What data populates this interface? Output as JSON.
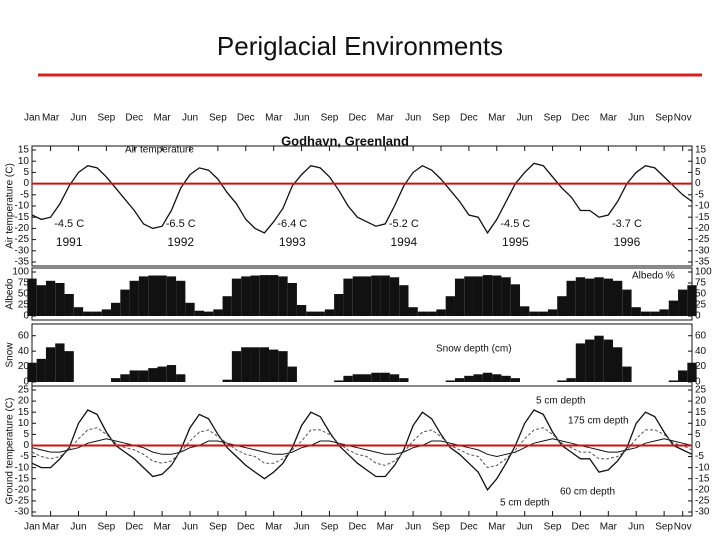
{
  "title": "Periglacial Environments",
  "chart_data": [
    {
      "type": "line",
      "title": "Godhavn, Greenland",
      "ylabel": "Air temperature (C)",
      "annotation": "Air temperature",
      "mean_labels": [
        "-4.5 C",
        "-6.5 C",
        "-6.4 C",
        "-5.2 C",
        "-4.5 C",
        "-3.7 C"
      ],
      "year_labels": [
        "1991",
        "1992",
        "1993",
        "1994",
        "1995",
        "1996"
      ],
      "x": [
        0,
        1,
        2,
        3,
        4,
        5,
        6,
        7,
        8,
        9,
        10,
        11,
        12,
        13,
        14,
        15,
        16,
        17,
        18,
        19,
        20,
        21,
        22,
        23,
        24,
        25,
        26,
        27,
        28,
        29,
        30,
        31,
        32,
        33,
        34,
        35,
        36,
        37,
        38,
        39,
        40,
        41,
        42,
        43,
        44,
        45,
        46,
        47,
        48,
        49,
        50,
        51,
        52,
        53,
        54,
        55,
        56,
        57,
        58,
        59,
        60,
        61,
        62,
        63,
        64,
        65,
        66,
        67,
        68,
        69,
        70,
        71
      ],
      "xlim": [
        0,
        71
      ],
      "xticks": [
        {
          "value": 0,
          "label": "Jan"
        },
        {
          "value": 2,
          "label": "Mar"
        },
        {
          "value": 5,
          "label": "Jun"
        },
        {
          "value": 8,
          "label": "Sep"
        },
        {
          "value": 11,
          "label": "Dec"
        },
        {
          "value": 14,
          "label": "Mar"
        },
        {
          "value": 17,
          "label": "Jun"
        },
        {
          "value": 20,
          "label": "Sep"
        },
        {
          "value": 23,
          "label": "Dec"
        },
        {
          "value": 26,
          "label": "Mar"
        },
        {
          "value": 29,
          "label": "Jun"
        },
        {
          "value": 32,
          "label": "Sep"
        },
        {
          "value": 35,
          "label": "Dec"
        },
        {
          "value": 38,
          "label": "Mar"
        },
        {
          "value": 41,
          "label": "Jun"
        },
        {
          "value": 44,
          "label": "Sep"
        },
        {
          "value": 47,
          "label": "Dec"
        },
        {
          "value": 50,
          "label": "Mar"
        },
        {
          "value": 53,
          "label": "Jun"
        },
        {
          "value": 56,
          "label": "Sep"
        },
        {
          "value": 59,
          "label": "Dec"
        },
        {
          "value": 62,
          "label": "Mar"
        },
        {
          "value": 65,
          "label": "Jun"
        },
        {
          "value": 68,
          "label": "Sep"
        },
        {
          "value": 70,
          "label": "Nov"
        }
      ],
      "ylim": [
        -35,
        15
      ],
      "yticks": [
        15,
        10,
        5,
        0,
        -5,
        -10,
        -15,
        -20,
        -25,
        -30,
        -35
      ],
      "zero_line_color": "#cc1111",
      "series": [
        {
          "color": "#111111",
          "values": [
            -14,
            -16,
            -15,
            -9,
            -1,
            5,
            8,
            7,
            3,
            -2,
            -7,
            -12,
            -18,
            -20,
            -19,
            -12,
            -2,
            4,
            7,
            6,
            2,
            -4,
            -9,
            -16,
            -20,
            -22,
            -17,
            -11,
            -1,
            4,
            8,
            7,
            3,
            -3,
            -10,
            -15,
            -17,
            -19,
            -18,
            -10,
            -1,
            5,
            8,
            6,
            2,
            -3,
            -8,
            -14,
            -15,
            -22,
            -16,
            -8,
            0,
            5,
            9,
            8,
            3,
            -2,
            -6,
            -12,
            -12,
            -15,
            -14,
            -8,
            0,
            5,
            8,
            7,
            3,
            -1,
            -5,
            -8
          ]
        }
      ]
    },
    {
      "type": "bar",
      "ylabel": "Albedo",
      "annotation": "Albedo %",
      "x": [
        0,
        1,
        2,
        3,
        4,
        5,
        6,
        7,
        8,
        9,
        10,
        11,
        12,
        13,
        14,
        15,
        16,
        17,
        18,
        19,
        20,
        21,
        22,
        23,
        24,
        25,
        26,
        27,
        28,
        29,
        30,
        31,
        32,
        33,
        34,
        35,
        36,
        37,
        38,
        39,
        40,
        41,
        42,
        43,
        44,
        45,
        46,
        47,
        48,
        49,
        50,
        51,
        52,
        53,
        54,
        55,
        56,
        57,
        58,
        59,
        60,
        61,
        62,
        63,
        64,
        65,
        66,
        67,
        68,
        69,
        70,
        71
      ],
      "xlim": [
        0,
        71
      ],
      "ylim": [
        0,
        100
      ],
      "yticks": [
        100,
        75,
        50,
        25,
        0
      ],
      "color": "#111111",
      "values": [
        85,
        70,
        80,
        75,
        50,
        20,
        10,
        10,
        15,
        30,
        60,
        80,
        90,
        92,
        92,
        90,
        80,
        30,
        12,
        10,
        15,
        45,
        85,
        90,
        92,
        93,
        93,
        90,
        75,
        25,
        10,
        10,
        15,
        50,
        85,
        90,
        90,
        92,
        92,
        88,
        70,
        20,
        10,
        10,
        15,
        45,
        85,
        90,
        90,
        93,
        92,
        88,
        72,
        22,
        10,
        10,
        15,
        45,
        80,
        88,
        85,
        88,
        85,
        80,
        60,
        20,
        10,
        10,
        15,
        35,
        60,
        70
      ]
    },
    {
      "type": "bar",
      "ylabel": "Snow",
      "annotation": "Snow depth (cm)",
      "x": [
        0,
        1,
        2,
        3,
        4,
        5,
        6,
        7,
        8,
        9,
        10,
        11,
        12,
        13,
        14,
        15,
        16,
        17,
        18,
        19,
        20,
        21,
        22,
        23,
        24,
        25,
        26,
        27,
        28,
        29,
        30,
        31,
        32,
        33,
        34,
        35,
        36,
        37,
        38,
        39,
        40,
        41,
        42,
        43,
        44,
        45,
        46,
        47,
        48,
        49,
        50,
        51,
        52,
        53,
        54,
        55,
        56,
        57,
        58,
        59,
        60,
        61,
        62,
        63,
        64,
        65,
        66,
        67,
        68,
        69,
        70,
        71
      ],
      "xlim": [
        0,
        71
      ],
      "ylim": [
        0,
        70
      ],
      "yticks": [
        60,
        40,
        20,
        0
      ],
      "color": "#111111",
      "values": [
        25,
        30,
        45,
        50,
        40,
        0,
        0,
        0,
        0,
        5,
        10,
        15,
        15,
        18,
        20,
        22,
        10,
        0,
        0,
        0,
        0,
        3,
        40,
        45,
        45,
        45,
        42,
        40,
        20,
        0,
        0,
        0,
        0,
        2,
        8,
        10,
        10,
        12,
        12,
        10,
        5,
        0,
        0,
        0,
        0,
        2,
        5,
        8,
        10,
        12,
        10,
        8,
        5,
        0,
        0,
        0,
        0,
        2,
        5,
        50,
        55,
        60,
        55,
        45,
        20,
        0,
        0,
        0,
        0,
        2,
        15,
        25
      ]
    },
    {
      "type": "line",
      "ylabel": "Ground temperature (C)",
      "x": [
        0,
        1,
        2,
        3,
        4,
        5,
        6,
        7,
        8,
        9,
        10,
        11,
        12,
        13,
        14,
        15,
        16,
        17,
        18,
        19,
        20,
        21,
        22,
        23,
        24,
        25,
        26,
        27,
        28,
        29,
        30,
        31,
        32,
        33,
        34,
        35,
        36,
        37,
        38,
        39,
        40,
        41,
        42,
        43,
        44,
        45,
        46,
        47,
        48,
        49,
        50,
        51,
        52,
        53,
        54,
        55,
        56,
        57,
        58,
        59,
        60,
        61,
        62,
        63,
        64,
        65,
        66,
        67,
        68,
        69,
        70,
        71
      ],
      "xlim": [
        0,
        71
      ],
      "xticks": [
        {
          "value": 0,
          "label": "Jan"
        },
        {
          "value": 2,
          "label": "Mar"
        },
        {
          "value": 5,
          "label": "Jun"
        },
        {
          "value": 8,
          "label": "Sep"
        },
        {
          "value": 11,
          "label": "Dec"
        },
        {
          "value": 14,
          "label": "Mar"
        },
        {
          "value": 17,
          "label": "Jun"
        },
        {
          "value": 20,
          "label": "Sep"
        },
        {
          "value": 23,
          "label": "Dec"
        },
        {
          "value": 26,
          "label": "Mar"
        },
        {
          "value": 29,
          "label": "Jun"
        },
        {
          "value": 32,
          "label": "Sep"
        },
        {
          "value": 35,
          "label": "Dec"
        },
        {
          "value": 38,
          "label": "Mar"
        },
        {
          "value": 41,
          "label": "Jun"
        },
        {
          "value": 44,
          "label": "Sep"
        },
        {
          "value": 47,
          "label": "Dec"
        },
        {
          "value": 50,
          "label": "Mar"
        },
        {
          "value": 53,
          "label": "Jun"
        },
        {
          "value": 56,
          "label": "Sep"
        },
        {
          "value": 59,
          "label": "Dec"
        },
        {
          "value": 62,
          "label": "Mar"
        },
        {
          "value": 65,
          "label": "Jun"
        },
        {
          "value": 68,
          "label": "Sep"
        },
        {
          "value": 70,
          "label": "Nov"
        }
      ],
      "ylim": [
        -30,
        25
      ],
      "yticks": [
        25,
        20,
        15,
        10,
        5,
        0,
        -5,
        -10,
        -15,
        -20,
        -25,
        -30
      ],
      "zero_line_color": "#cc1111",
      "series": [
        {
          "name": "5 cm depth",
          "color": "#111111",
          "values": [
            -8,
            -10,
            -10,
            -6,
            -1,
            10,
            16,
            14,
            6,
            0,
            -3,
            -6,
            -10,
            -14,
            -13,
            -9,
            -2,
            8,
            14,
            12,
            5,
            -1,
            -5,
            -9,
            -12,
            -15,
            -12,
            -8,
            -1,
            9,
            15,
            13,
            6,
            0,
            -4,
            -8,
            -11,
            -14,
            -14,
            -9,
            -2,
            9,
            15,
            12,
            5,
            -1,
            -4,
            -8,
            -12,
            -20,
            -15,
            -8,
            0,
            10,
            16,
            14,
            6,
            0,
            -3,
            -6,
            -6,
            -12,
            -11,
            -7,
            -1,
            10,
            15,
            13,
            6,
            0,
            -2,
            -4
          ]
        },
        {
          "name": "175 cm depth",
          "color": "#111111",
          "values": [
            -1,
            -2,
            -3,
            -3,
            -2,
            -1,
            1,
            2,
            3,
            2,
            1,
            0,
            -1,
            -3,
            -4,
            -4,
            -3,
            -1,
            0,
            2,
            2,
            1,
            0,
            -1,
            -2,
            -3,
            -4,
            -4,
            -3,
            -1,
            0,
            2,
            2,
            1,
            0,
            -1,
            -2,
            -3,
            -4,
            -4,
            -3,
            -1,
            0,
            2,
            2,
            1,
            0,
            -1,
            -2,
            -4,
            -5,
            -4,
            -3,
            -1,
            1,
            2,
            3,
            2,
            1,
            0,
            -1,
            -2,
            -3,
            -3,
            -2,
            -1,
            1,
            2,
            3,
            2,
            1,
            0
          ]
        },
        {
          "name": "60 cm depth",
          "color": "#555555",
          "values": [
            -3,
            -5,
            -6,
            -5,
            -2,
            3,
            7,
            8,
            5,
            1,
            -1,
            -2,
            -4,
            -7,
            -8,
            -7,
            -3,
            2,
            6,
            7,
            4,
            1,
            -2,
            -4,
            -5,
            -8,
            -8,
            -6,
            -2,
            2,
            7,
            7,
            5,
            1,
            -2,
            -4,
            -5,
            -8,
            -9,
            -7,
            -3,
            2,
            6,
            7,
            4,
            0,
            -2,
            -4,
            -5,
            -10,
            -9,
            -6,
            -2,
            3,
            7,
            8,
            5,
            1,
            -1,
            -3,
            -3,
            -6,
            -6,
            -5,
            -2,
            3,
            7,
            7,
            5,
            1,
            0,
            -2
          ]
        }
      ]
    }
  ]
}
